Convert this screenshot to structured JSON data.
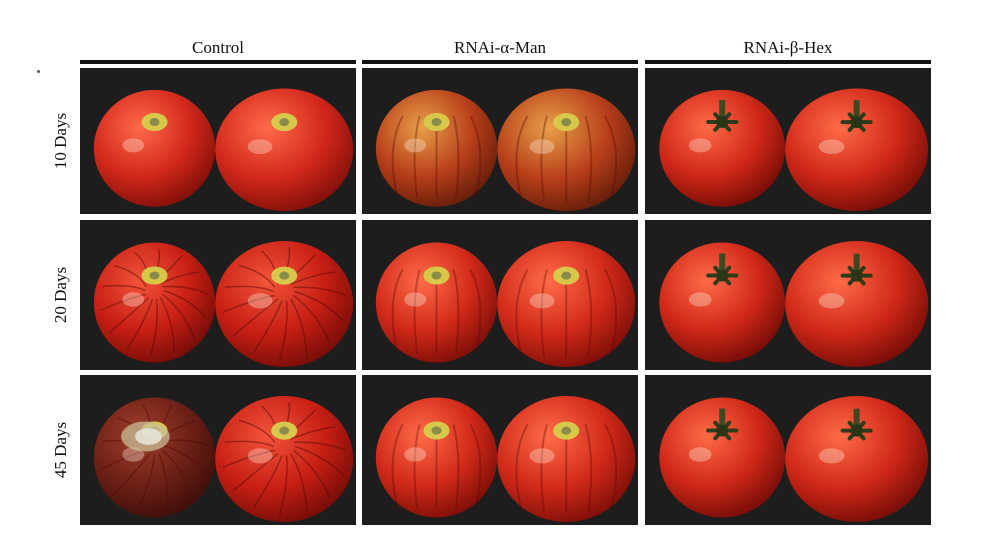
{
  "figure": {
    "columns": [
      {
        "label": "Control"
      },
      {
        "label": "RNAi-α-Man"
      },
      {
        "label": "RNAi-β-Hex"
      }
    ],
    "rows": [
      {
        "label": "10 Days"
      },
      {
        "label": "20 Days"
      },
      {
        "label": "45 Days"
      }
    ]
  },
  "colors": {
    "background": "#ffffff",
    "panel_background": "#1b1b1b",
    "tomato_red": "#c8261b",
    "stem_green": "#3c4a22"
  }
}
